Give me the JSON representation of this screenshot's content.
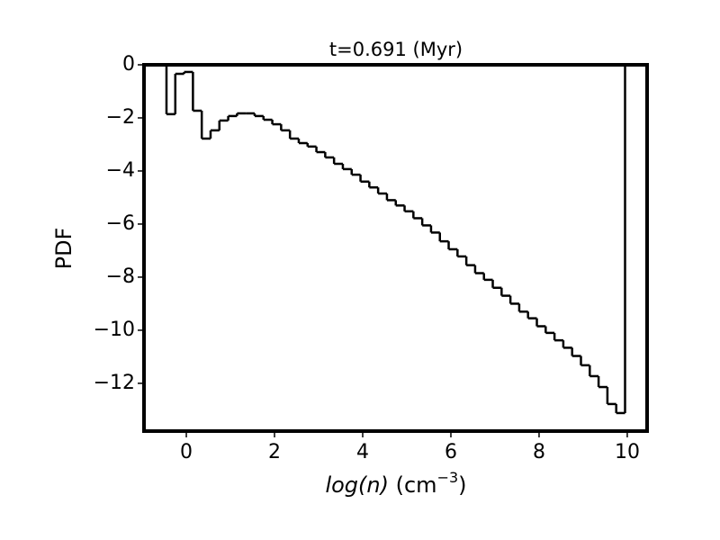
{
  "chart_data": {
    "type": "step_histogram",
    "title": "t=0.691 (Myr)",
    "x_label": {
      "variable": "log(n)",
      "unit_open": " (cm",
      "exponent": "−3",
      "unit_close": ")"
    },
    "y_label": "PDF",
    "bins": [
      -0.45,
      -0.25,
      -0.05,
      0.15,
      0.35,
      0.55,
      0.75,
      0.95,
      1.15,
      1.35,
      1.55,
      1.75,
      1.95,
      2.15,
      2.35,
      2.55,
      2.75,
      2.95,
      3.15,
      3.35,
      3.55,
      3.75,
      3.95,
      4.15,
      4.35,
      4.55,
      4.75,
      4.95,
      5.15,
      5.35,
      5.55,
      5.75,
      5.95,
      6.15,
      6.35,
      6.55,
      6.75,
      6.95,
      7.15,
      7.35,
      7.55,
      7.75,
      7.95,
      8.15,
      8.35,
      8.55,
      8.75,
      8.95,
      9.15,
      9.35,
      9.55,
      9.75,
      9.95
    ],
    "values": [
      -1.86,
      -0.34,
      -0.27,
      -1.73,
      -2.78,
      -2.47,
      -2.1,
      -1.93,
      -1.83,
      -1.83,
      -1.93,
      -2.07,
      -2.24,
      -2.47,
      -2.78,
      -2.95,
      -3.08,
      -3.29,
      -3.49,
      -3.73,
      -3.93,
      -4.14,
      -4.4,
      -4.62,
      -4.85,
      -5.1,
      -5.3,
      -5.52,
      -5.78,
      -6.05,
      -6.32,
      -6.65,
      -6.95,
      -7.22,
      -7.55,
      -7.85,
      -8.1,
      -8.4,
      -8.7,
      -9.0,
      -9.3,
      -9.55,
      -9.85,
      -10.1,
      -10.38,
      -10.66,
      -10.97,
      -11.32,
      -11.73,
      -12.14,
      -12.78,
      -13.12
    ],
    "color": "#000000",
    "xlim": [
      -0.96,
      10.45
    ],
    "xticks": [
      0,
      2,
      4,
      6,
      8,
      10
    ],
    "ylim": [
      -13.8,
      0
    ],
    "yticks": [
      0,
      {
        "value": -2,
        "label": "−2"
      },
      {
        "value": -4,
        "label": "−4"
      },
      {
        "value": -6,
        "label": "−6"
      },
      {
        "value": -8,
        "label": "−8"
      },
      {
        "value": -10,
        "label": "−10"
      },
      {
        "value": -12,
        "label": "−12"
      }
    ],
    "grid": false
  }
}
